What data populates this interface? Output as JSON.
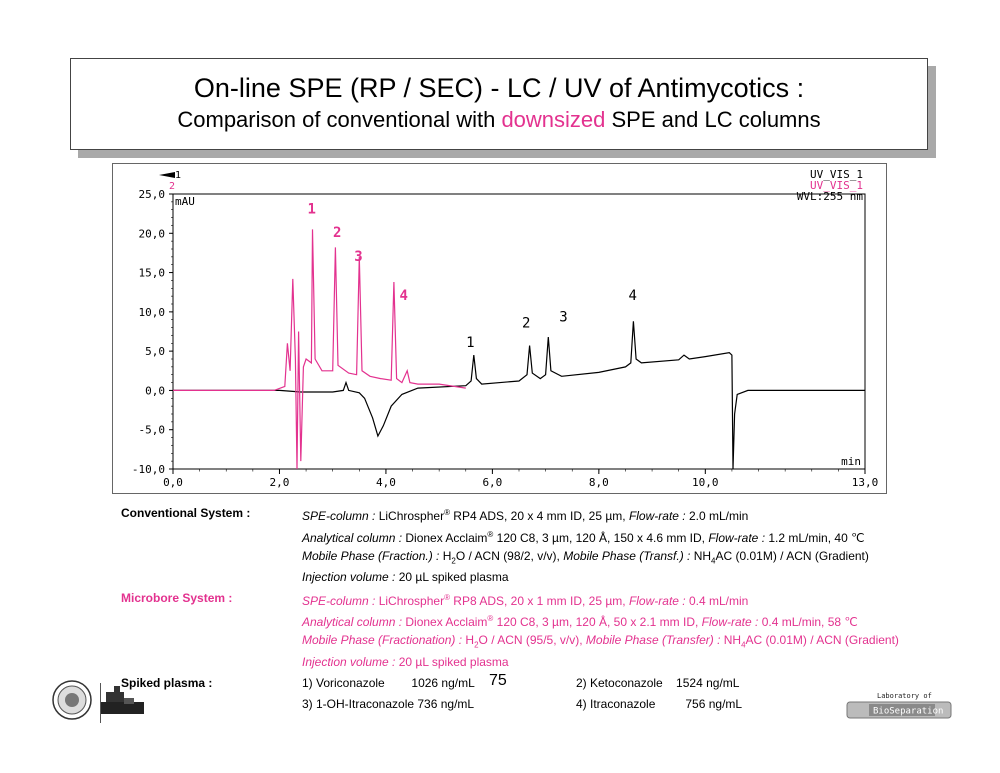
{
  "title": {
    "line1": "On-line SPE (RP / SEC) - LC / UV of Antimycotics :",
    "line2_pre": "Comparison of conventional with ",
    "line2_highlight": "downsized",
    "line2_post": " SPE and LC columns"
  },
  "colors": {
    "black_trace": "#000000",
    "pink_trace": "#e3328f"
  },
  "chart_data": {
    "type": "line",
    "x_unit": "min",
    "y_unit": "mAU",
    "xlim": [
      0,
      13
    ],
    "ylim": [
      -10,
      25
    ],
    "x_ticks": [
      "0,0",
      "2,0",
      "4,0",
      "6,0",
      "8,0",
      "10,0",
      "13,0"
    ],
    "x_tick_values": [
      0,
      2,
      4,
      6,
      8,
      10,
      13
    ],
    "y_ticks": [
      "25,0",
      "20,0",
      "15,0",
      "10,0",
      "5,0",
      "0,0",
      "-5,0",
      "-10,0"
    ],
    "y_tick_values": [
      25,
      20,
      15,
      10,
      5,
      0,
      -5,
      -10
    ],
    "legend": [
      "UV_VIS_1",
      "UV_VIS_1"
    ],
    "wavelength_label": "WVL:255 nm",
    "trace_markers": [
      "1",
      "2"
    ],
    "series": [
      {
        "color": "#000000",
        "points": [
          [
            0,
            0
          ],
          [
            2.0,
            0
          ],
          [
            2.4,
            -0.2
          ],
          [
            3.0,
            -0.2
          ],
          [
            3.2,
            0
          ],
          [
            3.25,
            1
          ],
          [
            3.3,
            0
          ],
          [
            3.5,
            -0.3
          ],
          [
            3.6,
            -1.0
          ],
          [
            3.75,
            -3.5
          ],
          [
            3.85,
            -5.8
          ],
          [
            3.95,
            -4.5
          ],
          [
            4.1,
            -2.0
          ],
          [
            4.3,
            -0.5
          ],
          [
            4.6,
            0.3
          ],
          [
            5.5,
            0.6
          ],
          [
            5.6,
            1.2
          ],
          [
            5.65,
            4.5
          ],
          [
            5.7,
            1.5
          ],
          [
            5.8,
            0.8
          ],
          [
            6.5,
            1.2
          ],
          [
            6.65,
            2.0
          ],
          [
            6.7,
            5.7
          ],
          [
            6.75,
            2.2
          ],
          [
            6.9,
            1.5
          ],
          [
            7.0,
            2.0
          ],
          [
            7.05,
            6.8
          ],
          [
            7.1,
            2.5
          ],
          [
            7.3,
            1.8
          ],
          [
            8.0,
            2.3
          ],
          [
            8.5,
            3.0
          ],
          [
            8.6,
            3.5
          ],
          [
            8.65,
            8.8
          ],
          [
            8.7,
            4.0
          ],
          [
            8.8,
            3.5
          ],
          [
            9.5,
            3.9
          ],
          [
            9.6,
            4.5
          ],
          [
            9.7,
            4.0
          ],
          [
            10.0,
            4.3
          ],
          [
            10.45,
            4.8
          ],
          [
            10.5,
            4.5
          ],
          [
            10.52,
            -10
          ],
          [
            10.55,
            -3
          ],
          [
            10.6,
            -0.5
          ],
          [
            10.8,
            0
          ],
          [
            13,
            0
          ]
        ]
      },
      {
        "color": "#e3328f",
        "points": [
          [
            0,
            0
          ],
          [
            1.9,
            0
          ],
          [
            2.1,
            0.5
          ],
          [
            2.15,
            6.0
          ],
          [
            2.2,
            2.5
          ],
          [
            2.25,
            14.2
          ],
          [
            2.3,
            4.0
          ],
          [
            2.33,
            -10
          ],
          [
            2.36,
            7.5
          ],
          [
            2.4,
            -9
          ],
          [
            2.45,
            3.0
          ],
          [
            2.5,
            4.0
          ],
          [
            2.6,
            3.5
          ],
          [
            2.62,
            20.5
          ],
          [
            2.67,
            4.0
          ],
          [
            2.8,
            2.5
          ],
          [
            3.0,
            2.5
          ],
          [
            3.05,
            18.2
          ],
          [
            3.1,
            3.2
          ],
          [
            3.3,
            2.2
          ],
          [
            3.45,
            2.0
          ],
          [
            3.5,
            17.0
          ],
          [
            3.55,
            2.5
          ],
          [
            3.7,
            1.8
          ],
          [
            3.9,
            1.5
          ],
          [
            4.1,
            1.3
          ],
          [
            4.15,
            13.8
          ],
          [
            4.2,
            1.5
          ],
          [
            4.3,
            1.0
          ],
          [
            4.4,
            2.5
          ],
          [
            4.45,
            1.0
          ],
          [
            4.6,
            0.8
          ],
          [
            5.0,
            0.8
          ],
          [
            5.3,
            0.5
          ],
          [
            5.5,
            0.3
          ]
        ]
      }
    ],
    "peak_labels_pink": [
      "1",
      "2",
      "3",
      "4"
    ],
    "peak_labels_black": [
      "1",
      "2",
      "3",
      "4"
    ]
  },
  "conditions": {
    "conventional": {
      "label": "Conventional System :",
      "spe_key": "SPE-column :",
      "spe_pre": " LiChrospher",
      "spe_sup": "®",
      "spe_post": " RP4 ADS, 20 x 4 mm ID, 25 µm, ",
      "spe_flow_key": "Flow-rate :",
      "spe_flow_val": " 2.0 mL/min",
      "anal_key": "Analytical column :",
      "anal_pre": " Dionex Acclaim",
      "anal_sup": "®",
      "anal_post": " 120  C8, 3 µm, 120 Å, 150 x 4.6 mm ID, ",
      "anal_flow_key": "Flow-rate :",
      "anal_flow_val": " 1.2 mL/min, 40 ℃",
      "mp_key1": "Mobile Phase (Fraction.) :",
      "mp_val1_a": " H",
      "mp_val1_sub": "2",
      "mp_val1_b": "O / ACN (98/2, v/v), ",
      "mp_key2": "Mobile Phase (Transf.) :",
      "mp_val2_a": " NH",
      "mp_val2_sub": "4",
      "mp_val2_b": "AC (0.01M) / ACN (Gradient)",
      "inj_key": "Injection volume :",
      "inj_val": " 20 µL  spiked plasma"
    },
    "microbore": {
      "label": "Microbore System :",
      "spe_key": "SPE-column :",
      "spe_pre": " LiChrospher",
      "spe_sup": "®",
      "spe_post": " RP8 ADS,  20 x 1 mm ID, 25 µm, ",
      "spe_flow_key": "Flow-rate :",
      "spe_flow_val": "  0.4 mL/min",
      "anal_key": "Analytical column :",
      "anal_pre": " Dionex Acclaim",
      "anal_sup": "®",
      "anal_post": " 120  C8, 3 µm, 120 Å, 50 x 2.1 mm ID, ",
      "anal_flow_key": "Flow-rate :",
      "anal_flow_val": "  0.4 mL/min, 58 ℃",
      "mp_key1": "Mobile Phase (Fractionation) :",
      "mp_val1_a": " H",
      "mp_val1_sub": "2",
      "mp_val1_b": "O / ACN (95/5, v/v), ",
      "mp_key2": "Mobile Phase (Transfer) :",
      "mp_val2_a": " NH",
      "mp_val2_sub": "4",
      "mp_val2_b": "AC (0.01M) / ACN (Gradient)",
      "inj_key": "Injection volume :",
      "inj_val": "  20 µL spiked plasma"
    },
    "spiked": {
      "label": "Spiked plasma :",
      "c1": "1) Voriconazole        1026 ng/mL",
      "c2": "2) Ketoconazole    1524 ng/mL",
      "c3": "3) 1-OH-Itraconazole 736 ng/mL",
      "c4": "4) Itraconazole         756 ng/mL"
    }
  },
  "page_number": "75",
  "footer_logo_right": {
    "line1": "Laboratory of",
    "line2": "BioSeparation"
  }
}
